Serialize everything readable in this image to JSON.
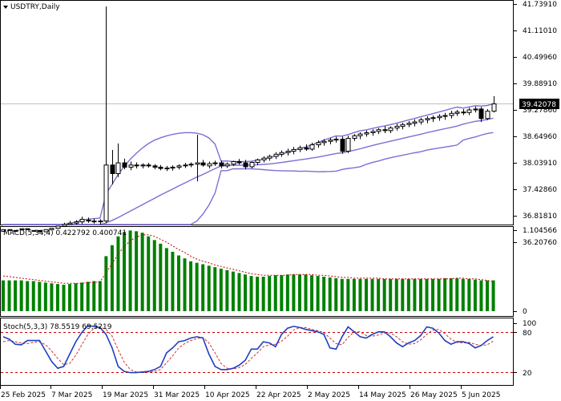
{
  "colors": {
    "background": "#ffffff",
    "axis": "#000000",
    "bollinger": "#7b6fd6",
    "macd_histogram": "#008000",
    "macd_signal": "#cc0000",
    "stoch_main": "#1f3fc0",
    "stoch_signal": "#cc3333",
    "stoch_levels": "#cc0000",
    "price_label_bg": "#000000",
    "price_label_text": "#ffffff"
  },
  "chart_data": [
    {
      "type": "candlestick",
      "title": "USDTRY,Daily",
      "current_price": "39.42078",
      "ylim": [
        36.2,
        41.8
      ],
      "y_ticks": [
        "41.73910",
        "41.11010",
        "40.49960",
        "39.88910",
        "39.27860",
        "38.64960",
        "38.03910",
        "37.42860",
        "36.81810",
        "36.20760"
      ],
      "x_ticks": [
        "25 Feb 2025",
        "7 Mar 2025",
        "19 Mar 2025",
        "31 Mar 2025",
        "10 Apr 2025",
        "22 Apr 2025",
        "2 May 2025",
        "14 May 2025",
        "26 May 2025",
        "5 Jun 2025"
      ],
      "bollinger_bands": "visible",
      "candles": [
        {
          "o": 36.46,
          "h": 36.55,
          "l": 36.42,
          "c": 36.5
        },
        {
          "o": 36.5,
          "h": 36.55,
          "l": 36.44,
          "c": 36.49
        },
        {
          "o": 36.48,
          "h": 36.52,
          "l": 36.42,
          "c": 36.46
        },
        {
          "o": 36.5,
          "h": 36.58,
          "l": 36.45,
          "c": 36.52
        },
        {
          "o": 36.52,
          "h": 36.6,
          "l": 36.45,
          "c": 36.5
        },
        {
          "o": 36.46,
          "h": 36.52,
          "l": 36.4,
          "c": 36.48
        },
        {
          "o": 36.48,
          "h": 36.53,
          "l": 36.4,
          "c": 36.45
        },
        {
          "o": 36.45,
          "h": 36.52,
          "l": 36.4,
          "c": 36.5
        },
        {
          "o": 36.5,
          "h": 36.56,
          "l": 36.46,
          "c": 36.53
        },
        {
          "o": 36.53,
          "h": 36.6,
          "l": 36.48,
          "c": 36.58
        },
        {
          "o": 36.58,
          "h": 36.66,
          "l": 36.52,
          "c": 36.62
        },
        {
          "o": 36.62,
          "h": 36.7,
          "l": 36.56,
          "c": 36.65
        },
        {
          "o": 36.65,
          "h": 36.72,
          "l": 36.6,
          "c": 36.68
        },
        {
          "o": 36.68,
          "h": 36.8,
          "l": 36.63,
          "c": 36.74
        },
        {
          "o": 36.72,
          "h": 36.78,
          "l": 36.66,
          "c": 36.7
        },
        {
          "o": 36.7,
          "h": 36.76,
          "l": 36.64,
          "c": 36.68
        },
        {
          "o": 36.68,
          "h": 36.74,
          "l": 36.62,
          "c": 36.7
        },
        {
          "o": 36.7,
          "h": 41.68,
          "l": 36.65,
          "c": 38.0
        },
        {
          "o": 38.0,
          "h": 38.35,
          "l": 37.55,
          "c": 37.8
        },
        {
          "o": 37.8,
          "h": 38.5,
          "l": 37.72,
          "c": 38.05
        },
        {
          "o": 38.05,
          "h": 38.15,
          "l": 37.9,
          "c": 37.95
        },
        {
          "o": 37.95,
          "h": 38.08,
          "l": 37.88,
          "c": 38.0
        },
        {
          "o": 38.0,
          "h": 38.06,
          "l": 37.92,
          "c": 37.98
        },
        {
          "o": 37.98,
          "h": 38.04,
          "l": 37.92,
          "c": 38.0
        },
        {
          "o": 38.0,
          "h": 38.05,
          "l": 37.94,
          "c": 37.98
        },
        {
          "o": 37.98,
          "h": 38.02,
          "l": 37.9,
          "c": 37.95
        },
        {
          "o": 37.95,
          "h": 38.0,
          "l": 37.88,
          "c": 37.92
        },
        {
          "o": 37.92,
          "h": 37.98,
          "l": 37.86,
          "c": 37.93
        },
        {
          "o": 37.93,
          "h": 37.99,
          "l": 37.87,
          "c": 37.95
        },
        {
          "o": 37.95,
          "h": 38.02,
          "l": 37.9,
          "c": 37.98
        },
        {
          "o": 37.98,
          "h": 38.05,
          "l": 37.93,
          "c": 38.0
        },
        {
          "o": 38.0,
          "h": 38.06,
          "l": 37.95,
          "c": 38.02
        },
        {
          "o": 38.02,
          "h": 38.7,
          "l": 37.62,
          "c": 38.05
        },
        {
          "o": 38.05,
          "h": 38.12,
          "l": 37.96,
          "c": 38.0
        },
        {
          "o": 37.98,
          "h": 38.08,
          "l": 37.92,
          "c": 38.03
        },
        {
          "o": 38.03,
          "h": 38.1,
          "l": 37.98,
          "c": 38.05
        },
        {
          "o": 38.05,
          "h": 38.1,
          "l": 37.92,
          "c": 37.98
        },
        {
          "o": 37.98,
          "h": 38.06,
          "l": 37.93,
          "c": 38.02
        },
        {
          "o": 38.02,
          "h": 38.1,
          "l": 37.98,
          "c": 38.08
        },
        {
          "o": 38.08,
          "h": 38.14,
          "l": 38.01,
          "c": 38.05
        },
        {
          "o": 38.05,
          "h": 38.12,
          "l": 37.9,
          "c": 37.96
        },
        {
          "o": 37.96,
          "h": 38.08,
          "l": 37.92,
          "c": 38.06
        },
        {
          "o": 38.06,
          "h": 38.15,
          "l": 38.0,
          "c": 38.12
        },
        {
          "o": 38.12,
          "h": 38.2,
          "l": 38.06,
          "c": 38.16
        },
        {
          "o": 38.16,
          "h": 38.24,
          "l": 38.1,
          "c": 38.2
        },
        {
          "o": 38.2,
          "h": 38.3,
          "l": 38.14,
          "c": 38.25
        },
        {
          "o": 38.25,
          "h": 38.34,
          "l": 38.19,
          "c": 38.29
        },
        {
          "o": 38.29,
          "h": 38.38,
          "l": 38.22,
          "c": 38.32
        },
        {
          "o": 38.32,
          "h": 38.42,
          "l": 38.25,
          "c": 38.36
        },
        {
          "o": 38.36,
          "h": 38.45,
          "l": 38.3,
          "c": 38.4
        },
        {
          "o": 38.4,
          "h": 38.48,
          "l": 38.33,
          "c": 38.37
        },
        {
          "o": 38.37,
          "h": 38.52,
          "l": 38.33,
          "c": 38.47
        },
        {
          "o": 38.47,
          "h": 38.57,
          "l": 38.4,
          "c": 38.52
        },
        {
          "o": 38.52,
          "h": 38.6,
          "l": 38.45,
          "c": 38.55
        },
        {
          "o": 38.55,
          "h": 38.63,
          "l": 38.48,
          "c": 38.58
        },
        {
          "o": 38.58,
          "h": 38.66,
          "l": 38.52,
          "c": 38.6
        },
        {
          "o": 38.6,
          "h": 38.66,
          "l": 38.26,
          "c": 38.32
        },
        {
          "o": 38.32,
          "h": 38.68,
          "l": 38.28,
          "c": 38.62
        },
        {
          "o": 38.62,
          "h": 38.72,
          "l": 38.56,
          "c": 38.68
        },
        {
          "o": 38.68,
          "h": 38.76,
          "l": 38.6,
          "c": 38.72
        },
        {
          "o": 38.72,
          "h": 38.8,
          "l": 38.66,
          "c": 38.75
        },
        {
          "o": 38.75,
          "h": 38.83,
          "l": 38.68,
          "c": 38.78
        },
        {
          "o": 38.78,
          "h": 38.86,
          "l": 38.72,
          "c": 38.82
        },
        {
          "o": 38.82,
          "h": 38.9,
          "l": 38.74,
          "c": 38.8
        },
        {
          "o": 38.8,
          "h": 38.9,
          "l": 38.74,
          "c": 38.86
        },
        {
          "o": 38.86,
          "h": 38.96,
          "l": 38.8,
          "c": 38.9
        },
        {
          "o": 38.9,
          "h": 38.98,
          "l": 38.83,
          "c": 38.94
        },
        {
          "o": 38.94,
          "h": 39.02,
          "l": 38.88,
          "c": 38.97
        },
        {
          "o": 38.97,
          "h": 39.06,
          "l": 38.9,
          "c": 39.0
        },
        {
          "o": 39.0,
          "h": 39.1,
          "l": 38.94,
          "c": 39.05
        },
        {
          "o": 39.05,
          "h": 39.13,
          "l": 38.97,
          "c": 39.08
        },
        {
          "o": 39.08,
          "h": 39.15,
          "l": 39.0,
          "c": 39.1
        },
        {
          "o": 39.1,
          "h": 39.18,
          "l": 39.03,
          "c": 39.13
        },
        {
          "o": 39.13,
          "h": 39.21,
          "l": 39.05,
          "c": 39.15
        },
        {
          "o": 39.15,
          "h": 39.26,
          "l": 39.08,
          "c": 39.2
        },
        {
          "o": 39.2,
          "h": 39.28,
          "l": 39.14,
          "c": 39.23
        },
        {
          "o": 39.23,
          "h": 39.3,
          "l": 39.16,
          "c": 39.22
        },
        {
          "o": 39.22,
          "h": 39.33,
          "l": 39.16,
          "c": 39.28
        },
        {
          "o": 39.28,
          "h": 39.36,
          "l": 39.22,
          "c": 39.3
        },
        {
          "o": 39.3,
          "h": 39.35,
          "l": 39.0,
          "c": 39.08
        },
        {
          "o": 39.08,
          "h": 39.3,
          "l": 39.04,
          "c": 39.25
        },
        {
          "o": 39.25,
          "h": 39.6,
          "l": 39.22,
          "c": 39.42
        }
      ]
    },
    {
      "type": "bar",
      "title": "MACD(5,34,4) 0.422792 0.400741",
      "y_ticks": [
        "1.104566",
        "0"
      ],
      "ylim": [
        0,
        1.104566
      ],
      "values": [
        0.42,
        0.42,
        0.42,
        0.42,
        0.41,
        0.41,
        0.4,
        0.39,
        0.38,
        0.37,
        0.36,
        0.37,
        0.38,
        0.39,
        0.4,
        0.41,
        0.41,
        0.75,
        0.9,
        1.02,
        1.08,
        1.1,
        1.09,
        1.07,
        1.02,
        0.97,
        0.92,
        0.86,
        0.81,
        0.76,
        0.72,
        0.68,
        0.66,
        0.64,
        0.62,
        0.6,
        0.58,
        0.56,
        0.54,
        0.52,
        0.5,
        0.48,
        0.47,
        0.47,
        0.48,
        0.49,
        0.49,
        0.5,
        0.5,
        0.5,
        0.5,
        0.49,
        0.48,
        0.47,
        0.46,
        0.45,
        0.44,
        0.44,
        0.44,
        0.44,
        0.44,
        0.44,
        0.44,
        0.44,
        0.44,
        0.44,
        0.44,
        0.44,
        0.44,
        0.44,
        0.44,
        0.44,
        0.44,
        0.45,
        0.45,
        0.45,
        0.44,
        0.44,
        0.43,
        0.42,
        0.42,
        0.42
      ],
      "signal": [
        0.48,
        0.47,
        0.46,
        0.45,
        0.44,
        0.43,
        0.42,
        0.41,
        0.4,
        0.39,
        0.38,
        0.38,
        0.38,
        0.38,
        0.39,
        0.39,
        0.4,
        0.52,
        0.65,
        0.78,
        0.88,
        0.96,
        1.01,
        1.04,
        1.04,
        1.02,
        0.98,
        0.94,
        0.89,
        0.84,
        0.8,
        0.75,
        0.71,
        0.68,
        0.66,
        0.63,
        0.61,
        0.59,
        0.57,
        0.55,
        0.53,
        0.51,
        0.5,
        0.49,
        0.49,
        0.49,
        0.49,
        0.49,
        0.5,
        0.5,
        0.5,
        0.5,
        0.49,
        0.49,
        0.48,
        0.47,
        0.46,
        0.46,
        0.45,
        0.45,
        0.45,
        0.45,
        0.45,
        0.44,
        0.44,
        0.44,
        0.44,
        0.44,
        0.44,
        0.44,
        0.44,
        0.44,
        0.44,
        0.44,
        0.44,
        0.45,
        0.45,
        0.44,
        0.44,
        0.43,
        0.42,
        0.4
      ]
    },
    {
      "type": "line",
      "title": "Stoch(5,3,3) 78.5519 69.5219",
      "y_ticks": [
        "100",
        "80",
        "20"
      ],
      "ylim": [
        0,
        100
      ],
      "levels": [
        80,
        20
      ],
      "series": [
        {
          "name": "78.5519",
          "values": [
            78,
            74,
            66,
            65,
            72,
            72,
            72,
            55,
            38,
            27,
            30,
            50,
            70,
            85,
            96,
            95,
            93,
            82,
            60,
            30,
            22,
            20,
            20,
            21,
            22,
            25,
            30,
            52,
            60,
            70,
            72,
            76,
            78,
            76,
            50,
            30,
            25,
            25,
            27,
            32,
            40,
            58,
            58,
            70,
            68,
            62,
            82,
            92,
            95,
            93,
            90,
            88,
            86,
            82,
            60,
            58,
            78,
            94,
            86,
            78,
            76,
            82,
            86,
            86,
            78,
            68,
            62,
            68,
            72,
            80,
            94,
            92,
            84,
            72,
            66,
            70,
            70,
            67,
            60,
            64,
            72,
            78
          ]
        },
        {
          "name": "69.5219",
          "values": [
            70,
            72,
            70,
            68,
            67,
            69,
            70,
            65,
            55,
            43,
            33,
            35,
            48,
            65,
            82,
            92,
            94,
            90,
            79,
            57,
            37,
            25,
            21,
            20,
            21,
            22,
            25,
            36,
            47,
            60,
            67,
            72,
            75,
            77,
            68,
            52,
            35,
            27,
            26,
            28,
            33,
            43,
            52,
            62,
            65,
            66,
            71,
            79,
            89,
            93,
            93,
            90,
            88,
            85,
            76,
            67,
            65,
            77,
            86,
            86,
            80,
            79,
            81,
            84,
            84,
            78,
            70,
            66,
            67,
            73,
            82,
            89,
            90,
            83,
            74,
            69,
            68,
            69,
            66,
            64,
            65,
            71
          ]
        }
      ]
    }
  ]
}
